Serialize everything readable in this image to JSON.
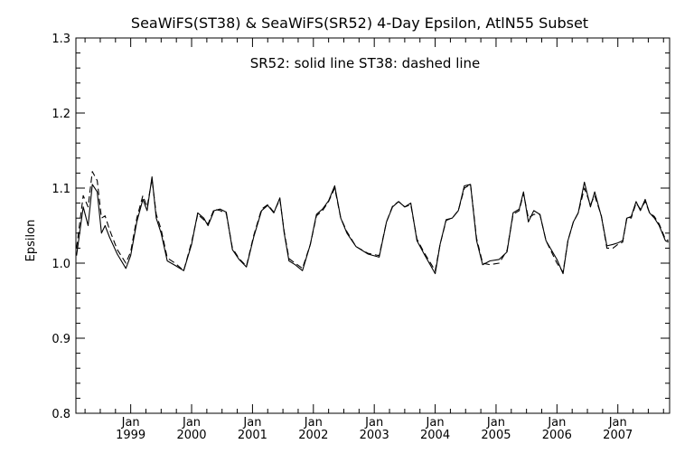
{
  "chart_data": {
    "type": "line",
    "title": "SeaWiFS(ST38) & SeaWiFS(SR52) 4-Day Epsilon, AtlN55 Subset",
    "annotation": "SR52: solid line   ST38: dashed line",
    "ylabel": "Epsilon",
    "xlabel": "",
    "ylim": [
      0.8,
      1.3
    ],
    "xlim": [
      1998.1,
      2007.85
    ],
    "yticks": [
      "0.8",
      "0.9",
      "1.0",
      "1.1",
      "1.2",
      "1.3"
    ],
    "xticks": [
      {
        "month": "Jan",
        "year": "1999"
      },
      {
        "month": "Jan",
        "year": "2000"
      },
      {
        "month": "Jan",
        "year": "2001"
      },
      {
        "month": "Jan",
        "year": "2002"
      },
      {
        "month": "Jan",
        "year": "2003"
      },
      {
        "month": "Jan",
        "year": "2004"
      },
      {
        "month": "Jan",
        "year": "2005"
      },
      {
        "month": "Jan",
        "year": "2006"
      },
      {
        "month": "Jan",
        "year": "2007"
      }
    ],
    "grid": false,
    "series": [
      {
        "name": "SR52",
        "style": "solid",
        "x": [
          1998.11,
          1998.22,
          1998.3,
          1998.37,
          1998.45,
          1998.52,
          1998.58,
          1998.65,
          1998.78,
          1998.92,
          1999.0,
          1999.1,
          1999.2,
          1999.27,
          1999.35,
          1999.42,
          1999.5,
          1999.6,
          1999.73,
          1999.87,
          2000.0,
          2000.1,
          2000.2,
          2000.27,
          2000.37,
          2000.47,
          2000.57,
          2000.67,
          2000.78,
          2000.9,
          2001.02,
          2001.15,
          2001.25,
          2001.35,
          2001.45,
          2001.52,
          2001.6,
          2001.7,
          2001.82,
          2001.95,
          2002.05,
          2002.15,
          2002.25,
          2002.35,
          2002.45,
          2002.55,
          2002.7,
          2002.9,
          2003.08,
          2003.2,
          2003.3,
          2003.4,
          2003.5,
          2003.6,
          2003.7,
          2003.82,
          2004.0,
          2004.08,
          2004.18,
          2004.28,
          2004.38,
          2004.48,
          2004.58,
          2004.68,
          2004.78,
          2004.9,
          2005.05,
          2005.18,
          2005.28,
          2005.38,
          2005.45,
          2005.53,
          2005.62,
          2005.72,
          2005.82,
          2006.0,
          2006.1,
          2006.18,
          2006.27,
          2006.35,
          2006.45,
          2006.55,
          2006.62,
          2006.73,
          2006.82,
          2006.92,
          2007.0,
          2007.08,
          2007.15,
          2007.22,
          2007.3,
          2007.37,
          2007.45,
          2007.52,
          2007.6,
          2007.68,
          2007.78,
          2007.83
        ],
        "y": [
          1.01,
          1.075,
          1.05,
          1.105,
          1.095,
          1.04,
          1.05,
          1.035,
          1.012,
          0.993,
          1.01,
          1.055,
          1.085,
          1.07,
          1.115,
          1.06,
          1.04,
          1.003,
          0.997,
          0.99,
          1.025,
          1.067,
          1.06,
          1.05,
          1.07,
          1.072,
          1.068,
          1.018,
          1.005,
          0.995,
          1.035,
          1.07,
          1.077,
          1.067,
          1.087,
          1.04,
          1.003,
          0.998,
          0.99,
          1.025,
          1.065,
          1.072,
          1.083,
          1.103,
          1.06,
          1.04,
          1.022,
          1.012,
          1.008,
          1.055,
          1.075,
          1.082,
          1.075,
          1.08,
          1.03,
          1.012,
          0.986,
          1.025,
          1.058,
          1.06,
          1.07,
          1.103,
          1.105,
          1.03,
          0.998,
          1.003,
          1.005,
          1.015,
          1.067,
          1.072,
          1.095,
          1.055,
          1.07,
          1.065,
          1.03,
          1.005,
          0.986,
          1.03,
          1.055,
          1.067,
          1.108,
          1.075,
          1.095,
          1.062,
          1.023,
          1.025,
          1.027,
          1.03,
          1.06,
          1.062,
          1.082,
          1.07,
          1.085,
          1.067,
          1.06,
          1.05,
          1.03,
          1.028
        ]
      },
      {
        "name": "ST38",
        "style": "dashed",
        "x": [
          1998.11,
          1998.22,
          1998.3,
          1998.37,
          1998.45,
          1998.52,
          1998.58,
          1998.65,
          1998.78,
          1998.92,
          1999.0,
          1999.1,
          1999.2,
          1999.27,
          1999.35,
          1999.42,
          1999.5,
          1999.6,
          1999.73,
          1999.87,
          2000.0,
          2000.1,
          2000.2,
          2000.27,
          2000.37,
          2000.47,
          2000.57,
          2000.67,
          2000.78,
          2000.9,
          2001.02,
          2001.15,
          2001.25,
          2001.35,
          2001.45,
          2001.52,
          2001.6,
          2001.7,
          2001.82,
          2001.95,
          2002.05,
          2002.15,
          2002.25,
          2002.35,
          2002.45,
          2002.55,
          2002.7,
          2002.9,
          2003.08,
          2003.2,
          2003.3,
          2003.4,
          2003.5,
          2003.6,
          2003.7,
          2003.82,
          2004.0,
          2004.08,
          2004.18,
          2004.28,
          2004.38,
          2004.48,
          2004.58,
          2004.68,
          2004.78,
          2004.9,
          2005.05,
          2005.18,
          2005.28,
          2005.38,
          2005.45,
          2005.53,
          2005.62,
          2005.72,
          2005.82,
          2006.0,
          2006.1,
          2006.18,
          2006.27,
          2006.35,
          2006.45,
          2006.55,
          2006.62,
          2006.73,
          2006.82,
          2006.92,
          2007.0,
          2007.08,
          2007.15,
          2007.22,
          2007.3,
          2007.37,
          2007.45,
          2007.52,
          2007.6,
          2007.68,
          2007.78,
          2007.83
        ],
        "y": [
          1.02,
          1.09,
          1.075,
          1.122,
          1.11,
          1.06,
          1.063,
          1.045,
          1.018,
          1.0,
          1.015,
          1.06,
          1.09,
          1.075,
          1.112,
          1.065,
          1.045,
          1.007,
          1.0,
          0.99,
          1.028,
          1.065,
          1.058,
          1.052,
          1.072,
          1.07,
          1.066,
          1.02,
          1.006,
          0.996,
          1.037,
          1.072,
          1.078,
          1.068,
          1.085,
          1.042,
          1.006,
          1.0,
          0.993,
          1.025,
          1.063,
          1.07,
          1.082,
          1.1,
          1.06,
          1.042,
          1.022,
          1.013,
          1.01,
          1.055,
          1.076,
          1.082,
          1.075,
          1.078,
          1.032,
          1.014,
          0.99,
          1.025,
          1.057,
          1.06,
          1.07,
          1.1,
          1.105,
          1.033,
          1.0,
          0.998,
          1.0,
          1.017,
          1.065,
          1.07,
          1.093,
          1.06,
          1.065,
          1.065,
          1.03,
          1.0,
          0.988,
          1.03,
          1.055,
          1.067,
          1.1,
          1.078,
          1.09,
          1.063,
          1.02,
          1.02,
          1.025,
          1.028,
          1.062,
          1.06,
          1.08,
          1.072,
          1.082,
          1.067,
          1.062,
          1.052,
          1.032,
          1.03
        ]
      }
    ]
  }
}
